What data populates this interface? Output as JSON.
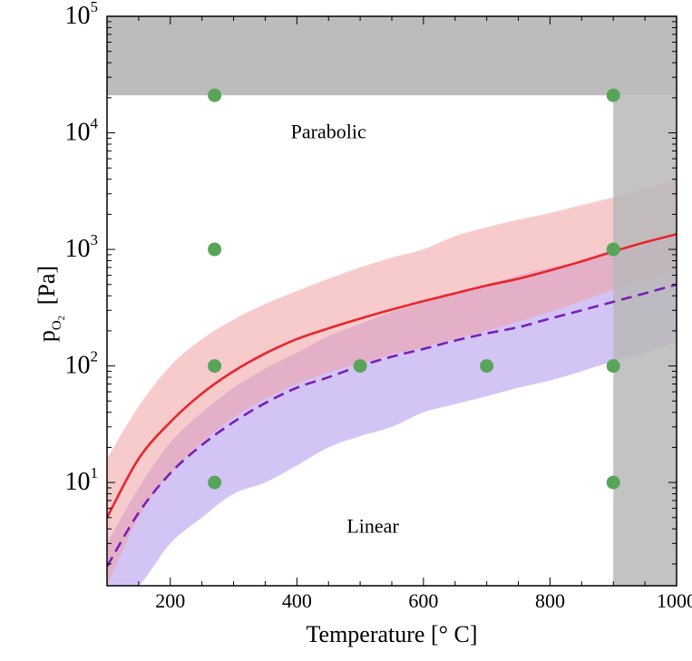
{
  "chart_data": {
    "type": "line",
    "xlabel": "Temperature [° C]",
    "ylabel": "p",
    "ylabel_subscript": "O",
    "ylabel_subsubscript": "2",
    "ylabel_unit": "[Pa]",
    "xlim": [
      100,
      1000
    ],
    "ylim": [
      1.3,
      100000
    ],
    "y_scale": "log",
    "grid": false,
    "x_ticks": [
      {
        "value": 200,
        "label": "200"
      },
      {
        "value": 400,
        "label": "400"
      },
      {
        "value": 600,
        "label": "600"
      },
      {
        "value": 800,
        "label": "800"
      },
      {
        "value": 1000,
        "label": "1000"
      }
    ],
    "y_ticks": [
      {
        "value": 10,
        "base": "10",
        "exp": "1"
      },
      {
        "value": 100,
        "base": "10",
        "exp": "2"
      },
      {
        "value": 1000,
        "base": "10",
        "exp": "3"
      },
      {
        "value": 10000,
        "base": "10",
        "exp": "4"
      },
      {
        "value": 100000,
        "base": "10",
        "exp": "5"
      }
    ],
    "regions": [
      {
        "label": "Parabolic",
        "x": 450,
        "y": 9000
      },
      {
        "label": "Linear",
        "x": 520,
        "y": 3.7
      }
    ],
    "shaded_limits": {
      "color": "#b8b8b8",
      "top_pressure_threshold": 21000,
      "right_temperature_threshold": 900
    },
    "x": [
      100,
      150,
      200,
      250,
      300,
      350,
      400,
      450,
      500,
      550,
      600,
      650,
      700,
      750,
      800,
      850,
      900,
      950,
      1000
    ],
    "series": [
      {
        "line_style": "solid",
        "color": "#e8262c",
        "band_color": "#f0a0a3",
        "values": [
          5,
          16,
          33,
          58,
          90,
          128,
          170,
          210,
          255,
          305,
          360,
          420,
          490,
          560,
          660,
          790,
          960,
          1150,
          1350
        ],
        "band_lower": [
          1.3,
          5,
          12,
          22,
          36,
          52,
          70,
          88,
          105,
          125,
          145,
          170,
          200,
          240,
          290,
          360,
          450,
          550,
          650
        ],
        "band_upper": [
          16,
          45,
          100,
          170,
          250,
          340,
          440,
          560,
          700,
          850,
          1000,
          1300,
          1550,
          1800,
          2050,
          2400,
          2800,
          3300,
          4000
        ]
      },
      {
        "line_style": "dashed",
        "color": "#7a1fb3",
        "band_color": "#b59cf0",
        "values": [
          1.9,
          5.5,
          12,
          21,
          33,
          48,
          65,
          80,
          100,
          120,
          140,
          165,
          190,
          215,
          255,
          300,
          355,
          420,
          500
        ],
        "band_lower": [
          0.9,
          1.3,
          3,
          5,
          8,
          10,
          14,
          20,
          25,
          30,
          40,
          47,
          55,
          65,
          75,
          90,
          110,
          130,
          160
        ],
        "band_upper": [
          3,
          9,
          22,
          40,
          65,
          95,
          130,
          180,
          230,
          290,
          350,
          420,
          500,
          600,
          700,
          800,
          950,
          1100,
          1300
        ]
      }
    ],
    "points": {
      "color": "#58a55a",
      "values": [
        {
          "x": 270,
          "y": 21000
        },
        {
          "x": 270,
          "y": 1000
        },
        {
          "x": 270,
          "y": 100
        },
        {
          "x": 270,
          "y": 10
        },
        {
          "x": 500,
          "y": 100
        },
        {
          "x": 700,
          "y": 100
        },
        {
          "x": 900,
          "y": 21000
        },
        {
          "x": 900,
          "y": 1000
        },
        {
          "x": 900,
          "y": 100
        },
        {
          "x": 900,
          "y": 10
        }
      ]
    }
  }
}
